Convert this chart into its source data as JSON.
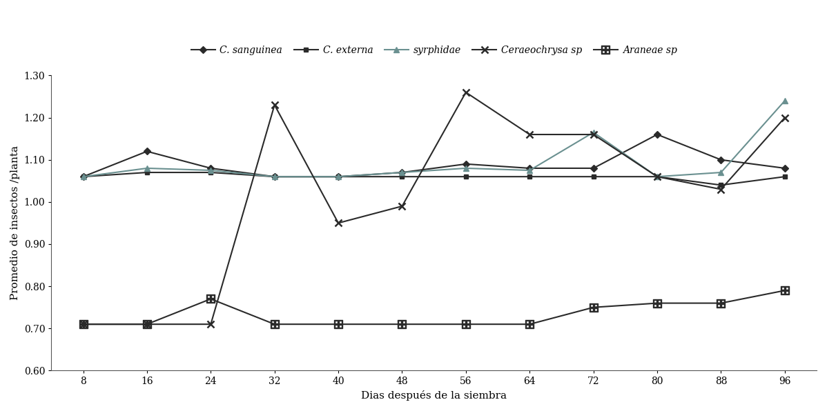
{
  "x": [
    8,
    16,
    24,
    32,
    40,
    48,
    56,
    64,
    72,
    80,
    88,
    96
  ],
  "series_order": [
    "C. sanguinea",
    "C. externa",
    "syrphidae",
    "Ceraeochrysa sp",
    "Araneae sp"
  ],
  "series": {
    "C. sanguinea": {
      "values": [
        1.06,
        1.12,
        1.08,
        1.06,
        1.06,
        1.07,
        1.09,
        1.08,
        1.08,
        1.16,
        1.1,
        1.08
      ],
      "marker": "D",
      "color": "#2a2a2a",
      "linewidth": 1.5,
      "markersize": 5
    },
    "C. externa": {
      "values": [
        1.06,
        1.07,
        1.07,
        1.06,
        1.06,
        1.06,
        1.06,
        1.06,
        1.06,
        1.06,
        1.04,
        1.06
      ],
      "marker": "s",
      "color": "#2a2a2a",
      "linewidth": 1.5,
      "markersize": 5
    },
    "syrphidae": {
      "values": [
        1.06,
        1.08,
        1.075,
        1.06,
        1.06,
        1.07,
        1.08,
        1.075,
        1.165,
        1.06,
        1.07,
        1.24
      ],
      "marker": "^",
      "color": "#6a9090",
      "linewidth": 1.5,
      "markersize": 6
    },
    "Ceraeochrysa sp": {
      "values": [
        0.71,
        0.71,
        0.71,
        1.23,
        0.95,
        0.99,
        1.26,
        1.16,
        1.16,
        1.06,
        1.03,
        1.2
      ],
      "marker": "x",
      "color": "#2a2a2a",
      "linewidth": 1.5,
      "markersize": 7
    },
    "Araneae sp": {
      "values": [
        0.71,
        0.71,
        0.77,
        0.71,
        0.71,
        0.71,
        0.71,
        0.71,
        0.75,
        0.76,
        0.76,
        0.79
      ],
      "marker": "ARANEAE",
      "color": "#2a2a2a",
      "linewidth": 1.5,
      "markersize": 6
    }
  },
  "xlabel": "Dias después de la siembra",
  "ylabel": "Promedio de insectos /planta",
  "ylim": [
    0.6,
    1.3
  ],
  "yticks": [
    0.6,
    0.7,
    0.8,
    0.9,
    1.0,
    1.1,
    1.2,
    1.3
  ],
  "xticks": [
    8,
    16,
    24,
    32,
    40,
    48,
    56,
    64,
    72,
    80,
    88,
    96
  ],
  "background_color": "#ffffff"
}
